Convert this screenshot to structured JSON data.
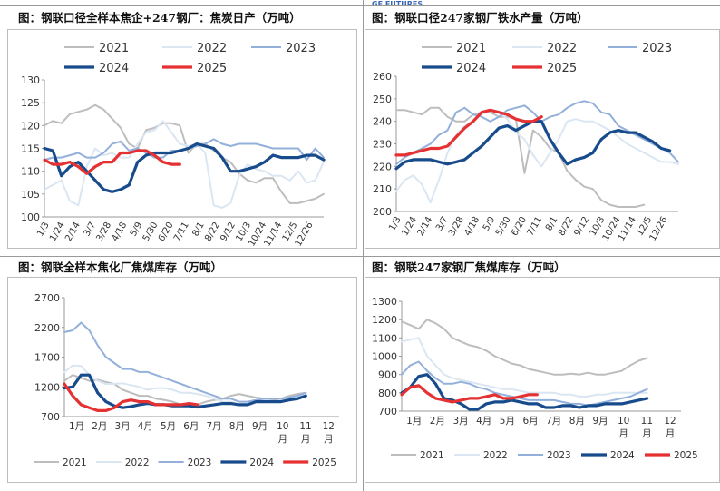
{
  "watermark": "GF FUTURES",
  "colors": {
    "2021": "#bdbdbd",
    "2022": "#dbe6f3",
    "2023": "#93b0db",
    "2024": "#174b8c",
    "2025": "#e53131"
  },
  "chart_data": [
    {
      "type": "line",
      "title": "图：钢联口径全样本焦企+247钢厂：焦炭日产（万吨）",
      "ylim": [
        100,
        130
      ],
      "yticks": [
        "100",
        "105",
        "110",
        "115",
        "120",
        "125",
        "130"
      ],
      "xticks": [
        "1/3",
        "1/24",
        "2/14",
        "3/7",
        "3/28",
        "4/18",
        "5/9",
        "5/30",
        "6/20",
        "7/11",
        "8/1",
        "8/22",
        "9/12",
        "10/3",
        "10/24",
        "11/14",
        "12/5",
        "12/26"
      ],
      "legend": [
        "2021",
        "2022",
        "2023",
        "2024",
        "2025"
      ],
      "series": [
        {
          "name": "2021",
          "values": [
            120,
            121,
            120.5,
            122.5,
            123,
            123.5,
            124.5,
            123.5,
            121.5,
            119.5,
            116,
            115,
            119,
            119.5,
            120.5,
            120.5,
            120,
            114,
            116,
            116,
            114.5,
            113,
            112,
            109.5,
            108,
            107.5,
            108.5,
            108.5,
            105.5,
            103,
            103,
            103.5,
            104,
            105
          ]
        },
        {
          "name": "2022",
          "values": [
            106,
            107,
            108,
            103.5,
            102.5,
            111,
            115,
            113.5,
            114,
            113,
            113,
            116,
            118.5,
            119,
            121,
            118.5,
            116,
            115.5,
            116,
            114,
            102.5,
            102,
            103,
            109,
            111.5,
            110.5,
            110,
            109,
            109,
            108,
            110,
            107.5,
            108,
            112
          ]
        },
        {
          "name": "2023",
          "values": [
            112.5,
            113,
            113,
            113.5,
            114,
            113,
            113,
            114,
            116,
            116.5,
            114.5,
            115,
            114,
            113,
            113,
            114.5,
            114.5,
            115,
            115.5,
            116,
            117,
            116,
            115.5,
            116,
            116,
            116,
            115.5,
            115,
            115,
            115,
            115,
            112.5,
            115,
            113
          ]
        },
        {
          "name": "2024",
          "values": [
            115,
            114.5,
            109,
            111,
            112,
            110,
            108,
            106,
            105.5,
            106,
            107,
            112,
            113.5,
            114,
            114,
            114,
            114.5,
            115,
            116,
            115.5,
            115,
            113,
            110,
            110,
            110.5,
            111,
            112,
            113.5,
            113,
            113,
            113,
            113.5,
            113.5,
            112.5
          ]
        },
        {
          "name": "2025",
          "values": [
            112.5,
            111.5,
            111.5,
            112,
            111,
            109.5,
            111,
            112,
            112,
            114,
            114,
            114.5,
            114.5,
            113.5,
            112,
            111.5,
            111.5
          ]
        }
      ]
    },
    {
      "type": "line",
      "title": "图：钢联口径247家钢厂铁水产量（万吨）",
      "ylim": [
        200,
        260
      ],
      "yticks": [
        "200",
        "210",
        "220",
        "230",
        "240",
        "250",
        "260"
      ],
      "xticks": [
        "1/3",
        "1/24",
        "2/14",
        "3/7",
        "3/28",
        "4/18",
        "5/9",
        "5/30",
        "6/20",
        "7/11",
        "8/1",
        "8/22",
        "9/12",
        "10/3",
        "10/24",
        "11/14",
        "12/5",
        "12/26"
      ],
      "legend": [
        "2021",
        "2022",
        "2023",
        "2024",
        "2025"
      ],
      "series": [
        {
          "name": "2021",
          "values": [
            245,
            245,
            244,
            243,
            246,
            246,
            242,
            240,
            240,
            243,
            244,
            244,
            242,
            242,
            241,
            217,
            236,
            233,
            228,
            226,
            218,
            214,
            211,
            210,
            205,
            203,
            202,
            202,
            202,
            203
          ]
        },
        {
          "name": "2022",
          "values": [
            209,
            214,
            216,
            212,
            204,
            214,
            226,
            234,
            238,
            240,
            243,
            245,
            244,
            241,
            235,
            232,
            225,
            220,
            226,
            232,
            240,
            241,
            240,
            240,
            238,
            236,
            233,
            230,
            228,
            226,
            224,
            222,
            222,
            221
          ]
        },
        {
          "name": "2023",
          "values": [
            221,
            224,
            226,
            228,
            230,
            234,
            236,
            244,
            246,
            243,
            242,
            240,
            242,
            245,
            246,
            247,
            244,
            240,
            242,
            243,
            246,
            248,
            249,
            248,
            244,
            243,
            238,
            236,
            234,
            232,
            230,
            228,
            226,
            222
          ]
        },
        {
          "name": "2024",
          "values": [
            219,
            222,
            223,
            223,
            223,
            222,
            221,
            222,
            223,
            226,
            229,
            233,
            237,
            238,
            236,
            238,
            240,
            240,
            232,
            226,
            221,
            223,
            224,
            226,
            232,
            235,
            236,
            235,
            235,
            233,
            231,
            228,
            227
          ]
        },
        {
          "name": "2025",
          "values": [
            225,
            225,
            226,
            227,
            228,
            228,
            229,
            233,
            237,
            240,
            244,
            245,
            244,
            243,
            241,
            240,
            240,
            242
          ]
        }
      ]
    },
    {
      "type": "line",
      "title": "图：钢联全样本焦化厂焦煤库存（万吨）",
      "ylim": [
        700,
        2700
      ],
      "yticks": [
        "700",
        "1200",
        "1700",
        "2200",
        "2700"
      ],
      "xticks": [
        "1月",
        "2月",
        "3月",
        "4月",
        "5月",
        "6月",
        "7月",
        "8月",
        "9月",
        "10\n月",
        "11\n月",
        "12\n月"
      ],
      "legend": [
        "2021",
        "2022",
        "2023",
        "2024",
        "2025"
      ],
      "series": [
        {
          "name": "2021",
          "values": [
            1300,
            1400,
            1350,
            1300,
            1320,
            1280,
            1250,
            1150,
            1100,
            1050,
            1050,
            1000,
            980,
            950,
            900,
            880,
            900,
            950,
            980,
            1000,
            1050,
            1080,
            1050,
            1020,
            1000,
            980,
            1000,
            1050,
            1080,
            1100
          ]
        },
        {
          "name": "2022",
          "values": [
            1450,
            1560,
            1550,
            1400,
            1300,
            1250,
            1250,
            1260,
            1230,
            1200,
            1150,
            1180,
            1180,
            1150,
            1100,
            1100,
            1080,
            1050,
            1000,
            950,
            950,
            900,
            900,
            950,
            980,
            1000,
            1000,
            980,
            1000,
            1050
          ]
        },
        {
          "name": "2023",
          "values": [
            2120,
            2150,
            2280,
            2150,
            1900,
            1700,
            1600,
            1500,
            1500,
            1450,
            1450,
            1400,
            1350,
            1300,
            1250,
            1200,
            1150,
            1100,
            1050,
            1000,
            1000,
            950,
            950,
            980,
            1000,
            1000,
            1000,
            1020,
            1050,
            1100
          ]
        },
        {
          "name": "2024",
          "values": [
            1180,
            1200,
            1400,
            1400,
            1100,
            950,
            880,
            850,
            870,
            900,
            920,
            900,
            900,
            880,
            880,
            880,
            860,
            880,
            900,
            920,
            920,
            900,
            900,
            950,
            950,
            950,
            950,
            980,
            1000,
            1050
          ]
        },
        {
          "name": "2025",
          "values": [
            1250,
            1050,
            900,
            850,
            800,
            800,
            850,
            950,
            980,
            950,
            950,
            900,
            900,
            900,
            900,
            920,
            900
          ]
        }
      ]
    },
    {
      "type": "line",
      "title": "图：钢联247家钢厂焦煤库存（万吨）",
      "ylim": [
        700,
        1300
      ],
      "yticks": [
        "700",
        "800",
        "900",
        "1000",
        "1100",
        "1200",
        "1300"
      ],
      "xticks": [
        "1月",
        "2月",
        "3月",
        "4月",
        "5月",
        "6月",
        "7月",
        "8月",
        "9月",
        "10\n月",
        "11\n月",
        "12\n月"
      ],
      "legend": [
        "2021",
        "2022",
        "2023",
        "2024",
        "2025"
      ],
      "series": [
        {
          "name": "2021",
          "values": [
            1190,
            1170,
            1150,
            1200,
            1180,
            1150,
            1100,
            1080,
            1060,
            1050,
            1030,
            1000,
            980,
            960,
            950,
            930,
            920,
            910,
            900,
            900,
            905,
            900,
            910,
            900,
            900,
            910,
            920,
            950,
            975,
            990
          ]
        },
        {
          "name": "2022",
          "values": [
            1080,
            1090,
            1100,
            1000,
            950,
            900,
            880,
            870,
            860,
            850,
            840,
            830,
            820,
            820,
            810,
            800,
            800,
            800,
            800,
            790,
            790,
            780,
            780,
            790,
            790,
            800,
            800,
            800,
            800,
            800
          ]
        },
        {
          "name": "2023",
          "values": [
            900,
            950,
            970,
            920,
            880,
            850,
            850,
            860,
            850,
            830,
            820,
            800,
            790,
            780,
            770,
            760,
            760,
            760,
            760,
            750,
            740,
            740,
            730,
            740,
            750,
            760,
            770,
            780,
            800,
            820
          ]
        },
        {
          "name": "2024",
          "values": [
            800,
            830,
            890,
            900,
            850,
            770,
            760,
            740,
            710,
            710,
            740,
            750,
            750,
            760,
            750,
            740,
            740,
            720,
            720,
            730,
            730,
            720,
            730,
            730,
            740,
            740,
            740,
            750,
            760,
            770
          ]
        },
        {
          "name": "2025",
          "values": [
            790,
            830,
            840,
            800,
            770,
            760,
            750,
            760,
            770,
            770,
            780,
            790,
            770,
            770,
            780,
            790,
            790
          ]
        }
      ]
    }
  ]
}
